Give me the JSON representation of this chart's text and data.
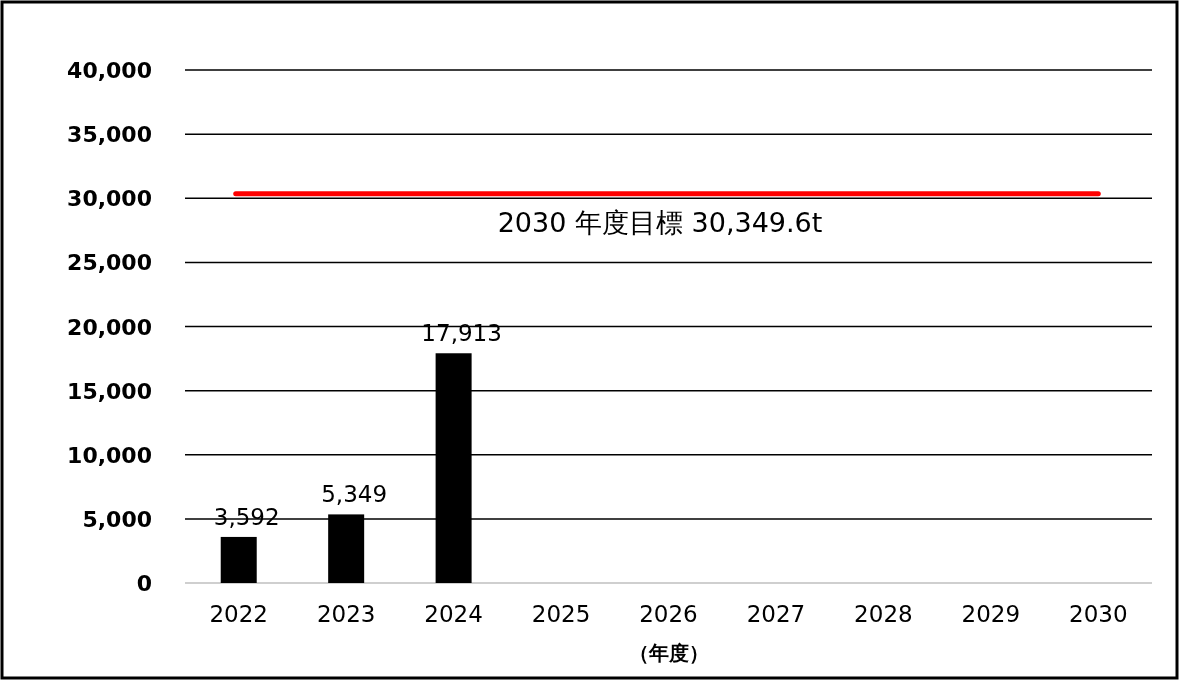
{
  "chart_data": {
    "type": "bar",
    "categories": [
      "2022",
      "2023",
      "2024",
      "2025",
      "2026",
      "2027",
      "2028",
      "2029",
      "2030"
    ],
    "values": [
      3592,
      5349,
      17913,
      null,
      null,
      null,
      null,
      null,
      null
    ],
    "value_labels": [
      "3,592",
      "5,349",
      "17,913",
      null,
      null,
      null,
      null,
      null,
      null
    ],
    "color": "#000000",
    "xlabel": "（年度）",
    "ylim": [
      0,
      40000
    ],
    "yticks": [
      {
        "value": 0,
        "label": "0"
      },
      {
        "value": 5000,
        "label": "5,000"
      },
      {
        "value": 10000,
        "label": "10,000"
      },
      {
        "value": 15000,
        "label": "15,000"
      },
      {
        "value": 20000,
        "label": "20,000"
      },
      {
        "value": 25000,
        "label": "25,000"
      },
      {
        "value": 30000,
        "label": "30,000"
      },
      {
        "value": 35000,
        "label": "35,000"
      },
      {
        "value": 40000,
        "label": "40,000"
      }
    ],
    "grid": "y",
    "ref_lines": [
      {
        "axis": "y",
        "value": 30349.6,
        "label": "2030 年度目標  30,349.6t",
        "color": "#ff0000"
      }
    ]
  }
}
